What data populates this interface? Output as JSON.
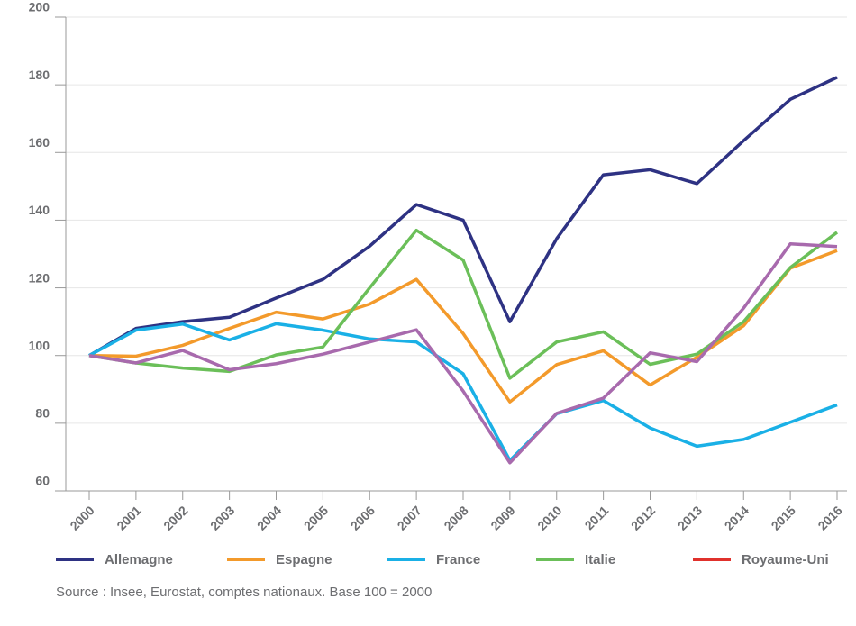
{
  "chart_data": {
    "type": "line",
    "x": [
      "2000",
      "2001",
      "2002",
      "2003",
      "2004",
      "2005",
      "2006",
      "2007",
      "2008",
      "2009",
      "2010",
      "2011",
      "2012",
      "2013",
      "2014",
      "2015",
      "2016"
    ],
    "series": [
      {
        "name": "Allemagne",
        "color": "#2e3283",
        "values": [
          100,
          108,
          110,
          111.3,
          117,
          122.5,
          132.3,
          144.6,
          140,
          110,
          134.5,
          153.4,
          154.9,
          150.8,
          163.5,
          175.7,
          182.2
        ]
      },
      {
        "name": "Espagne",
        "color": "#f39a2b",
        "values": [
          100,
          99.8,
          103,
          108,
          112.8,
          110.8,
          115.2,
          122.5,
          106.5,
          86.3,
          97.3,
          101.4,
          91.3,
          99.5,
          108.8,
          125.8,
          131
        ]
      },
      {
        "name": "France",
        "color": "#1ab0e6",
        "values": [
          100,
          107.5,
          109.3,
          104.6,
          109.4,
          107.5,
          104.9,
          104,
          94.6,
          69,
          82.8,
          86.7,
          78.6,
          73.2,
          75.2,
          80.3,
          85.4
        ]
      },
      {
        "name": "Italie",
        "color": "#6bbf59",
        "values": [
          100,
          97.8,
          96.3,
          95.3,
          100.2,
          102.5,
          120,
          137,
          128.2,
          93.3,
          104,
          107,
          97.4,
          100.4,
          110,
          126,
          136.4
        ]
      },
      {
        "name": "Royaume-Uni",
        "color": "#a86aad",
        "legend_color": "#e0312c",
        "values": [
          100,
          97.8,
          101.5,
          95.8,
          97.6,
          100.4,
          104,
          107.6,
          89.5,
          68.3,
          82.9,
          87.4,
          100.8,
          98.2,
          114,
          133,
          132.2
        ]
      }
    ],
    "ylim": [
      60,
      200
    ],
    "yticks": [
      60,
      80,
      100,
      120,
      140,
      160,
      180,
      200
    ],
    "grid": true,
    "source": "Source : Insee, Eurostat, comptes nationaux. Base 100 = 2000"
  }
}
